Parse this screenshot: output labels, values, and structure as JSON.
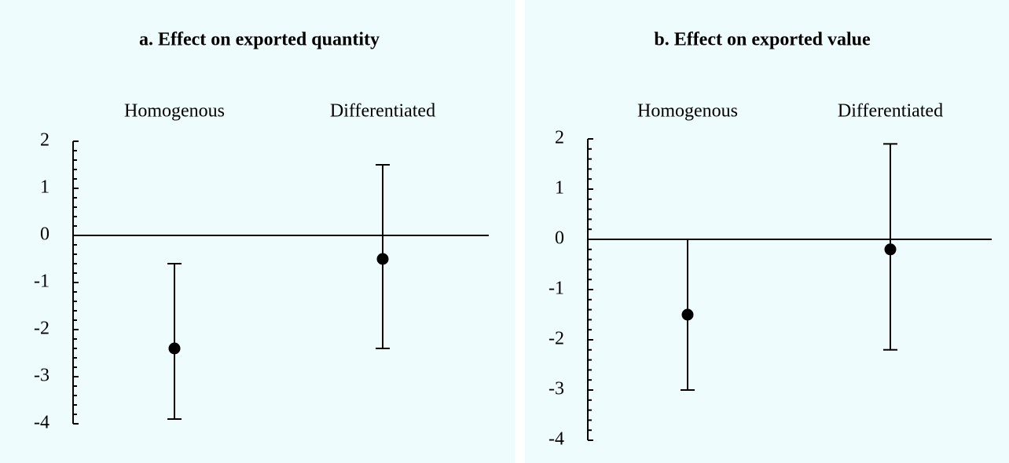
{
  "chart_data": [
    {
      "type": "errorbar",
      "title": "a. Effect on exported quantity",
      "categories": [
        "Homogenous",
        "Differentiated"
      ],
      "values": [
        -2.4,
        -0.5
      ],
      "lower": [
        -3.9,
        -2.4
      ],
      "upper": [
        -0.6,
        1.5
      ],
      "color": "#000000",
      "ylim": [
        -4,
        2
      ],
      "yticks": [
        -4,
        -3,
        -2,
        -1,
        0,
        1,
        2
      ]
    },
    {
      "type": "errorbar",
      "title": "b. Effect on exported value",
      "categories": [
        "Homogenous",
        "Differentiated"
      ],
      "values": [
        -1.5,
        -0.2
      ],
      "lower": [
        -3.0,
        -2.2
      ],
      "upper": [
        0.0,
        1.9
      ],
      "color": "#000000",
      "ylim": [
        -4,
        2
      ],
      "yticks": [
        -4,
        -3,
        -2,
        -1,
        0,
        1,
        2
      ]
    }
  ]
}
